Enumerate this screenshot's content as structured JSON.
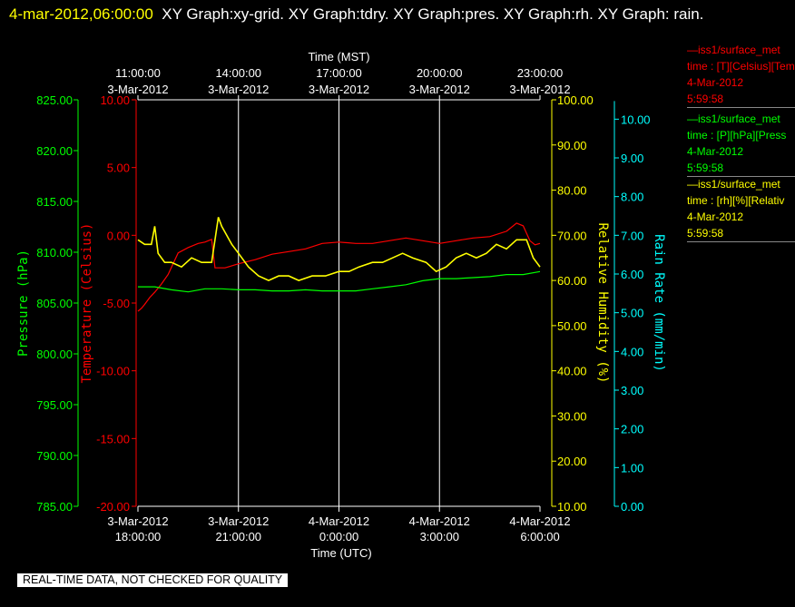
{
  "header": {
    "timestamp": "4-mar-2012,06:00:00",
    "title": "XY Graph:xy-grid.  XY Graph:tdry.  XY Graph:pres.  XY Graph:rh.  XY Graph: rain."
  },
  "legend": [
    {
      "color": "#ff0000",
      "line1": "—iss1/surface_met",
      "line2": "time : [T][Celsius][Temp",
      "line3": "4-Mar-2012",
      "line4": "5:59:58"
    },
    {
      "color": "#00ff00",
      "line1": "—iss1/surface_met",
      "line2": "time : [P][hPa][Press",
      "line3": "4-Mar-2012",
      "line4": "5:59:58"
    },
    {
      "color": "#ffff00",
      "line1": "—iss1/surface_met",
      "line2": "time : [rh][%][Relativ",
      "line3": "4-Mar-2012",
      "line4": "5:59:58"
    }
  ],
  "footer": "REAL-TIME DATA, NOT CHECKED FOR QUALITY",
  "chart_data": {
    "type": "line",
    "top_axis": {
      "label": "Time (MST)",
      "ticks": [
        {
          "x_hours": 0,
          "line1": "11:00:00",
          "line2": "3-Mar-2012"
        },
        {
          "x_hours": 3,
          "line1": "14:00:00",
          "line2": "3-Mar-2012"
        },
        {
          "x_hours": 6,
          "line1": "17:00:00",
          "line2": "3-Mar-2012"
        },
        {
          "x_hours": 9,
          "line1": "20:00:00",
          "line2": "3-Mar-2012"
        },
        {
          "x_hours": 12,
          "line1": "23:00:00",
          "line2": "3-Mar-2012"
        }
      ]
    },
    "bottom_axis": {
      "label": "Time (UTC)",
      "range": [
        "3-Mar-2012 18:00:00",
        "4-Mar-2012 6:00:00"
      ],
      "ticks": [
        {
          "x_hours": 0,
          "line1": "3-Mar-2012",
          "line2": "18:00:00"
        },
        {
          "x_hours": 3,
          "line1": "3-Mar-2012",
          "line2": "21:00:00"
        },
        {
          "x_hours": 6,
          "line1": "4-Mar-2012",
          "line2": "0:00:00"
        },
        {
          "x_hours": 9,
          "line1": "4-Mar-2012",
          "line2": "3:00:00"
        },
        {
          "x_hours": 12,
          "line1": "4-Mar-2012",
          "line2": "6:00:00"
        }
      ]
    },
    "axes": [
      {
        "id": "pres",
        "label": "Pressure (hPa)",
        "color": "#00ff00",
        "range": [
          785,
          825
        ],
        "ticks": [
          "785.00",
          "790.00",
          "795.00",
          "800.00",
          "805.00",
          "810.00",
          "815.00",
          "820.00",
          "825.00"
        ]
      },
      {
        "id": "temp",
        "label": "Temperature (Celsius)",
        "color": "#ff0000",
        "range": [
          -20,
          10
        ],
        "ticks": [
          "-20.00",
          "-15.00",
          "-10.00",
          "-5.00",
          "0.00",
          "5.00",
          "10.00"
        ]
      },
      {
        "id": "rh",
        "label": "Relative Humidity (%)",
        "color": "#ffff00",
        "range": [
          10,
          100
        ],
        "ticks": [
          "10.00",
          "20.00",
          "30.00",
          "40.00",
          "50.00",
          "60.00",
          "70.00",
          "80.00",
          "90.00",
          "100.00"
        ]
      },
      {
        "id": "rain",
        "label": "Rain Rate (mm/min)",
        "color": "#00ffff",
        "range": [
          0,
          10.5
        ],
        "ticks": [
          "0.00",
          "1.00",
          "2.00",
          "3.00",
          "4.00",
          "5.00",
          "6.00",
          "7.00",
          "8.00",
          "9.00",
          "10.00"
        ]
      }
    ],
    "series": [
      {
        "axis": "temp",
        "color": "#ff0000",
        "x": [
          0,
          0.1,
          0.2,
          0.35,
          0.5,
          0.7,
          0.9,
          1.2,
          1.5,
          1.8,
          2.0,
          2.2,
          2.3,
          2.6,
          3.0,
          3.5,
          4.0,
          4.5,
          5.0,
          5.5,
          6.0,
          6.5,
          7.0,
          7.5,
          8.0,
          8.5,
          9.0,
          9.5,
          10.0,
          10.5,
          11.0,
          11.3,
          11.5,
          11.7,
          11.85,
          12.0
        ],
        "values": [
          -5.6,
          -5.4,
          -5.1,
          -4.6,
          -4.2,
          -3.6,
          -2.9,
          -1.3,
          -0.9,
          -0.6,
          -0.5,
          -0.3,
          -2.4,
          -2.4,
          -2.1,
          -1.8,
          -1.4,
          -1.2,
          -1.0,
          -0.6,
          -0.5,
          -0.6,
          -0.6,
          -0.4,
          -0.2,
          -0.4,
          -0.6,
          -0.4,
          -0.2,
          -0.1,
          0.3,
          0.9,
          0.7,
          -0.4,
          -0.7,
          -0.6
        ]
      },
      {
        "axis": "pres",
        "color": "#00ff00",
        "x": [
          0,
          0.5,
          1.0,
          1.5,
          2.0,
          2.5,
          3.0,
          3.5,
          4.0,
          4.5,
          5.0,
          5.5,
          6.0,
          6.5,
          7.0,
          7.5,
          8.0,
          8.5,
          9.0,
          9.5,
          10.0,
          10.5,
          11.0,
          11.5,
          12.0
        ],
        "values": [
          806.6,
          806.6,
          806.3,
          806.1,
          806.4,
          806.4,
          806.3,
          806.3,
          806.2,
          806.2,
          806.3,
          806.2,
          806.2,
          806.2,
          806.4,
          806.6,
          806.8,
          807.2,
          807.4,
          807.4,
          807.5,
          807.6,
          807.8,
          807.8,
          808.1
        ]
      },
      {
        "axis": "rh",
        "color": "#ffff00",
        "x": [
          0,
          0.2,
          0.4,
          0.5,
          0.6,
          0.8,
          1.0,
          1.3,
          1.6,
          1.9,
          2.2,
          2.4,
          2.5,
          2.8,
          3.0,
          3.3,
          3.6,
          3.9,
          4.2,
          4.5,
          4.8,
          5.2,
          5.6,
          6.0,
          6.3,
          6.6,
          7.0,
          7.3,
          7.6,
          7.9,
          8.2,
          8.6,
          8.9,
          9.2,
          9.5,
          9.8,
          10.1,
          10.4,
          10.7,
          11.0,
          11.3,
          11.6,
          11.8,
          12.0
        ],
        "values": [
          69,
          68,
          68,
          72,
          66,
          64,
          64,
          63,
          65,
          64,
          64,
          74,
          72,
          68,
          66,
          63,
          61,
          60,
          61,
          61,
          60,
          61,
          61,
          62,
          62,
          63,
          64,
          64,
          65,
          66,
          65,
          64,
          62,
          63,
          65,
          66,
          65,
          66,
          68,
          67,
          69,
          69,
          65,
          63
        ]
      }
    ]
  }
}
